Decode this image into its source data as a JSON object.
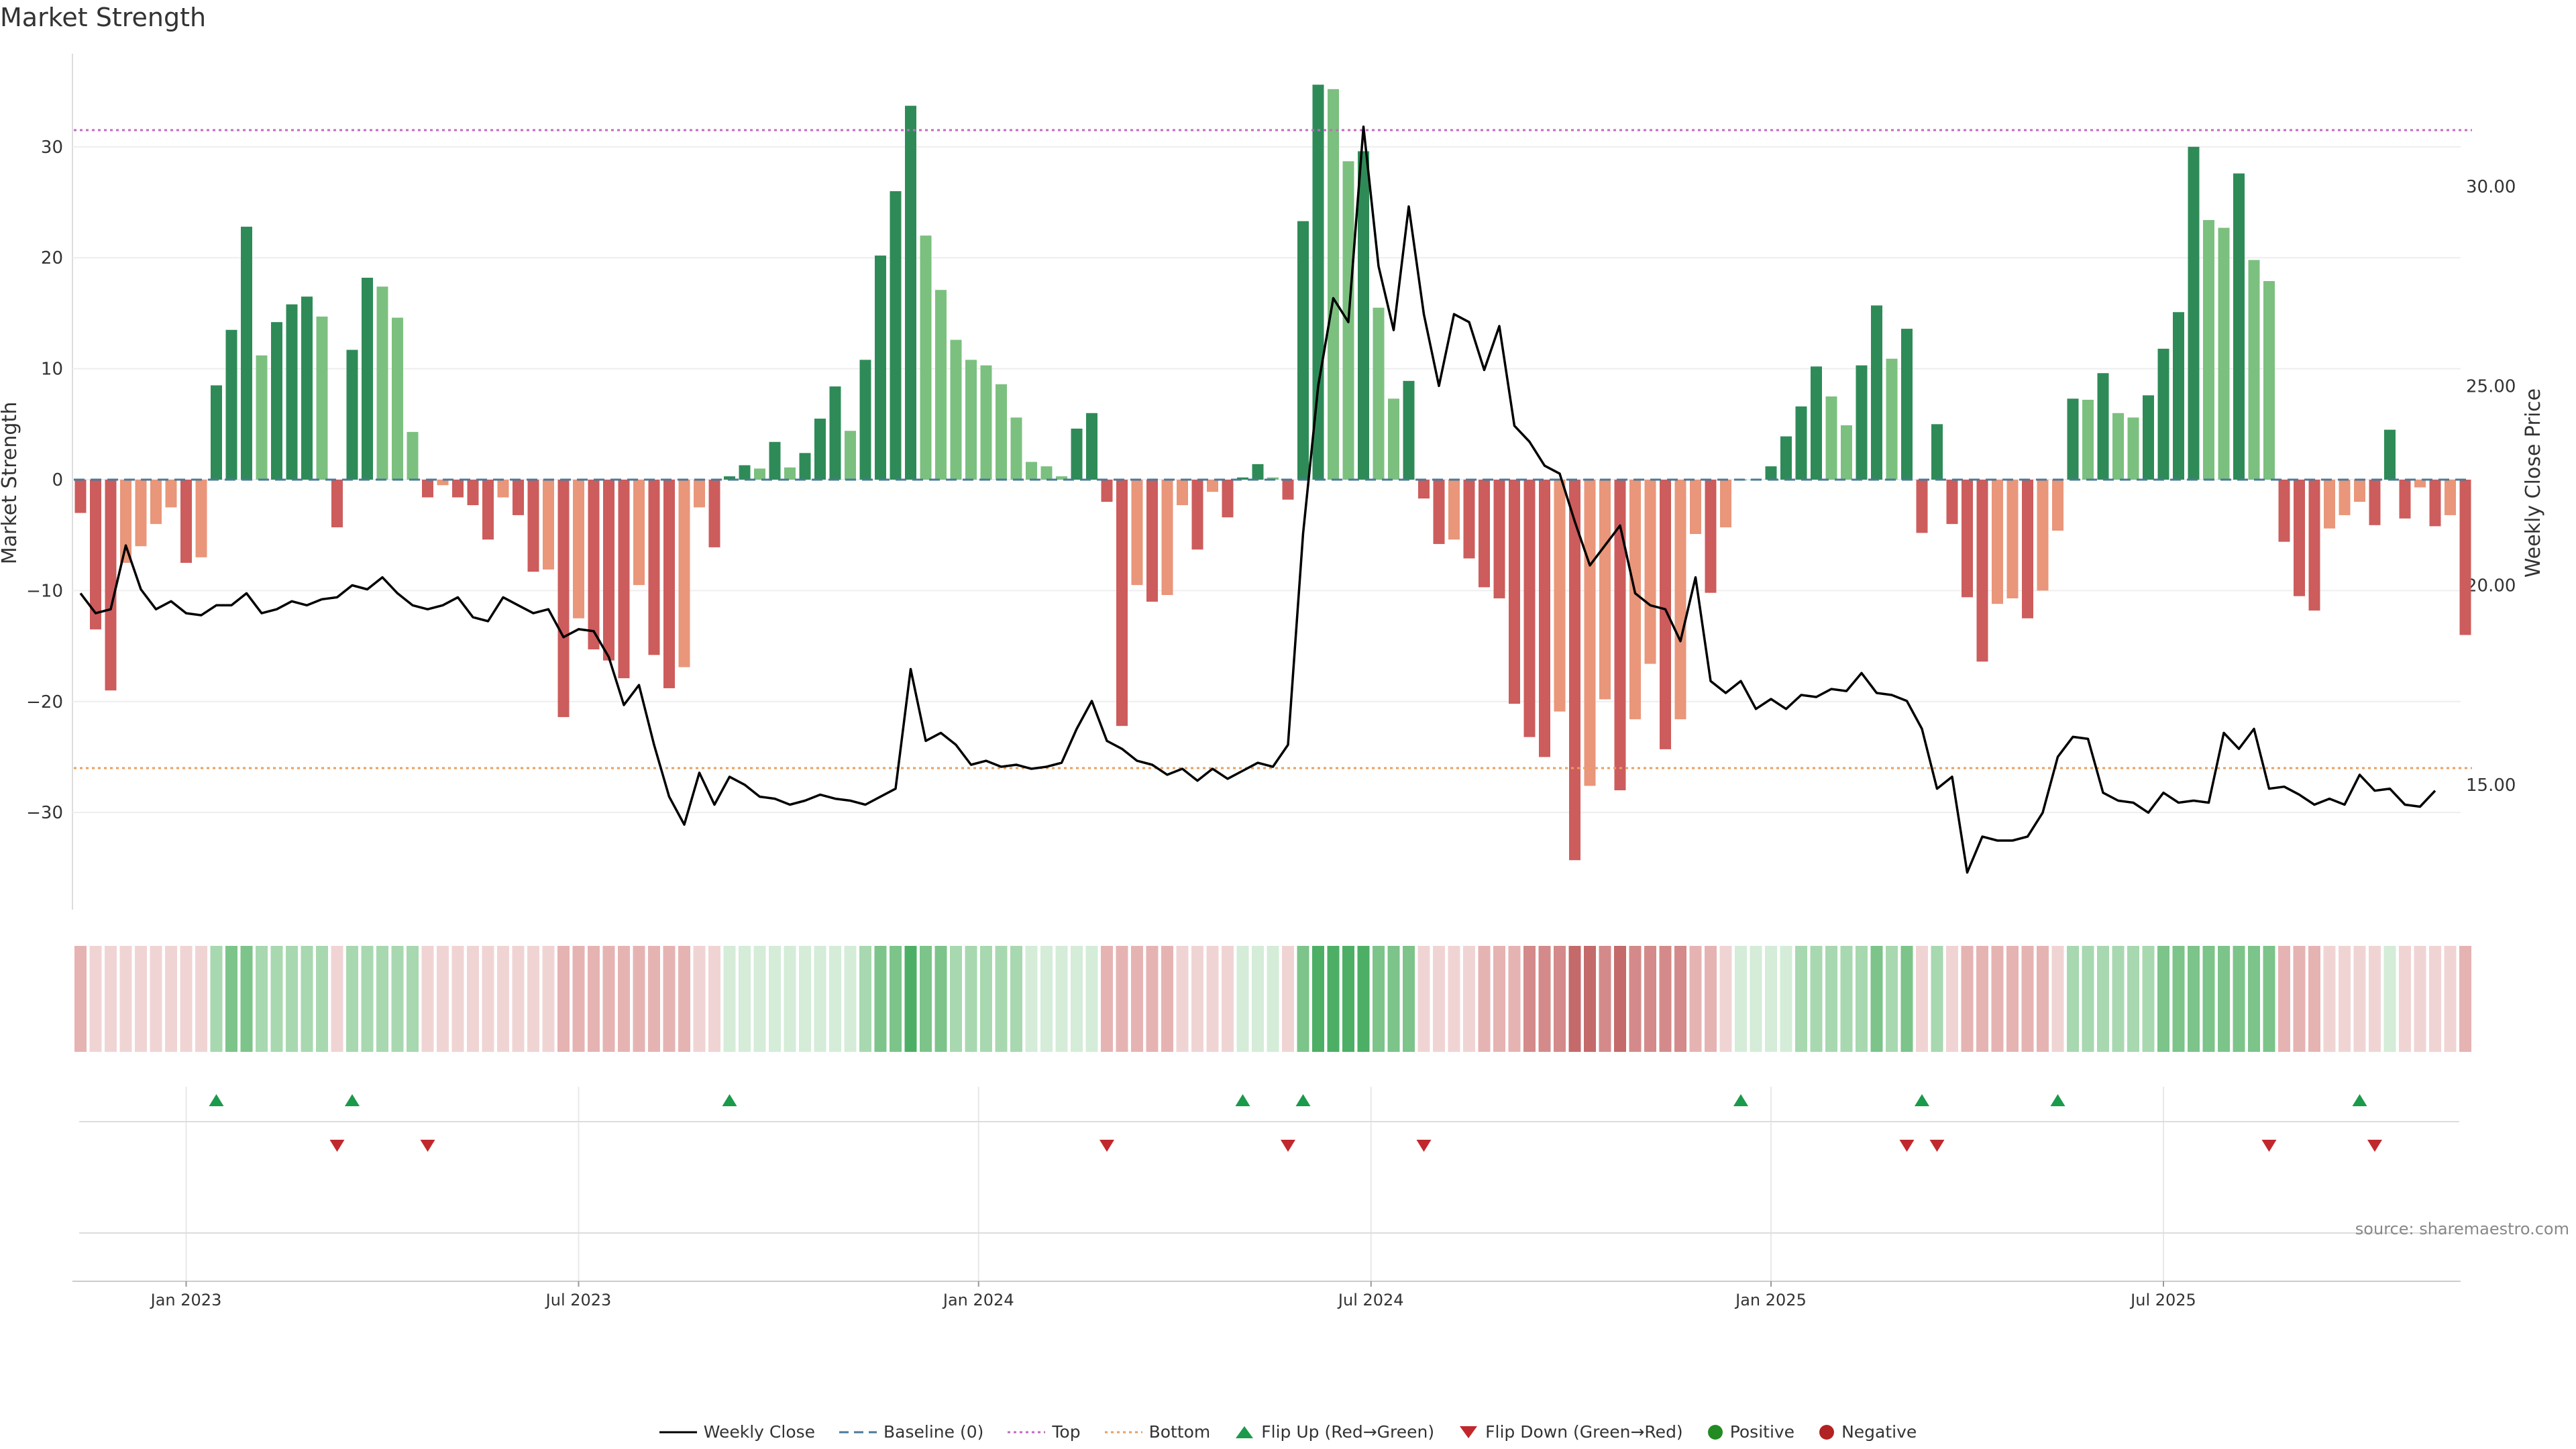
{
  "chart_data": {
    "type": "bar",
    "title": "Market Strength",
    "ylabel_left": "Market Strength",
    "ylabel_right": "Weekly Close Price",
    "ylim_left": [
      -39,
      39
    ],
    "ylim_right": [
      11.8,
      33.5
    ],
    "yticks_left": [
      -30,
      -20,
      -10,
      0,
      10,
      20,
      30
    ],
    "yticks_right": [
      "15.00",
      "20.00",
      "25.00",
      "30.00"
    ],
    "top_line": 31.5,
    "bottom_line": -26,
    "x_tick_labels": [
      "Jan 2023",
      "Jul 2023",
      "Jan 2024",
      "Jul 2024",
      "Jan 2025",
      "Jul 2025"
    ],
    "x_tick_weeks": [
      7,
      33,
      59.5,
      85.5,
      112,
      138
    ],
    "strength": [
      -3,
      -13.5,
      -19,
      -7.5,
      -6,
      -4,
      -2.5,
      -7.5,
      -7,
      8.5,
      13.5,
      22.8,
      11.2,
      14.2,
      15.8,
      16.5,
      14.7,
      -4.3,
      11.7,
      18.2,
      17.4,
      14.6,
      4.3,
      -1.6,
      -0.5,
      -1.6,
      -2.3,
      -5.4,
      -1.6,
      -3.2,
      -8.3,
      -8.1,
      -21.4,
      -12.5,
      -15.3,
      -16.3,
      -17.9,
      -9.5,
      -15.8,
      -18.8,
      -16.9,
      -2.5,
      -6.1,
      0.3,
      1.3,
      1,
      3.4,
      1.1,
      2.4,
      5.5,
      8.4,
      4.4,
      10.8,
      20.2,
      26,
      33.7,
      22,
      17.1,
      12.6,
      10.8,
      10.3,
      8.6,
      5.6,
      1.6,
      1.2,
      0.3,
      4.6,
      6,
      -2,
      -22.2,
      -9.5,
      -11,
      -10.4,
      -2.3,
      -6.3,
      -1.1,
      -3.4,
      0.2,
      1.4,
      0.2,
      -1.8,
      23.3,
      35.6,
      35.2,
      28.7,
      29.6,
      15.5,
      7.3,
      8.9,
      -1.7,
      -5.8,
      -5.4,
      -7.1,
      -9.7,
      -10.7,
      -20.2,
      -23.2,
      -25,
      -20.9,
      -34.3,
      -27.6,
      -19.8,
      -28,
      -21.6,
      -16.6,
      -24.3,
      -21.6,
      -4.9,
      -10.2,
      -4.3,
      0,
      0,
      1.2,
      3.9,
      6.6,
      10.2,
      7.5,
      4.9,
      10.3,
      15.7,
      10.9,
      13.6,
      -4.8,
      5,
      -4,
      -10.6,
      -16.4,
      -11.2,
      -10.7,
      -12.5,
      -10,
      -4.6,
      7.3,
      7.2,
      9.6,
      6,
      5.6,
      7.6,
      11.8,
      15.1,
      30,
      23.4,
      22.7,
      27.6,
      19.8,
      17.9,
      -5.6,
      -10.5,
      -11.8,
      -4.4,
      -3.2,
      -2,
      -4.1,
      4.5,
      -3.5,
      -0.7,
      -4.2,
      -3.2,
      -14
    ],
    "close": [
      19.8,
      19.3,
      19.4,
      21.0,
      19.9,
      19.4,
      19.6,
      19.3,
      19.25,
      19.5,
      19.5,
      19.8,
      19.3,
      19.4,
      19.6,
      19.5,
      19.65,
      19.7,
      20.0,
      19.9,
      20.2,
      19.8,
      19.5,
      19.4,
      19.5,
      19.7,
      19.2,
      19.1,
      19.7,
      19.5,
      19.3,
      19.4,
      18.7,
      18.9,
      18.85,
      18.2,
      17.0,
      17.5,
      16.0,
      14.7,
      14.0,
      15.3,
      14.5,
      15.2,
      15.0,
      14.7,
      14.65,
      14.5,
      14.6,
      14.75,
      14.65,
      14.6,
      14.5,
      14.7,
      14.9,
      17.9,
      16.1,
      16.3,
      16.0,
      15.5,
      15.6,
      15.45,
      15.5,
      15.4,
      15.45,
      15.55,
      16.4,
      17.1,
      16.1,
      15.9,
      15.6,
      15.5,
      15.25,
      15.4,
      15.1,
      15.4,
      15.15,
      15.35,
      15.55,
      15.45,
      16.0,
      21.3,
      25.0,
      27.2,
      26.6,
      31.5,
      28.0,
      26.4,
      29.5,
      26.8,
      25.0,
      26.8,
      26.6,
      25.4,
      26.5,
      24.0,
      23.6,
      23.0,
      22.8,
      21.6,
      20.5,
      21.0,
      21.5,
      19.8,
      19.5,
      19.4,
      18.6,
      20.2,
      17.6,
      17.3,
      17.6,
      16.9,
      17.15,
      16.9,
      17.25,
      17.2,
      17.4,
      17.35,
      17.8,
      17.3,
      17.25,
      17.1,
      16.4,
      14.9,
      15.2,
      12.8,
      13.7,
      13.6,
      13.6,
      13.7,
      14.3,
      15.7,
      16.2,
      16.15,
      14.8,
      14.6,
      14.55,
      14.3,
      14.8,
      14.55,
      14.6,
      14.55,
      16.3,
      15.9,
      16.4,
      14.9,
      14.95,
      14.75,
      14.5,
      14.65,
      14.5,
      15.25,
      14.85,
      14.9,
      14.5,
      14.45,
      14.85
    ],
    "state_intensity": [
      -2,
      -1,
      -1,
      -1,
      -1,
      -1,
      -1,
      -1,
      -1,
      2,
      3,
      3,
      2,
      2,
      2,
      2,
      2,
      -1,
      2,
      2,
      2,
      2,
      2,
      -1,
      -1,
      -1,
      -1,
      -1,
      -1,
      -1,
      -1,
      -1,
      -2,
      -2,
      -2,
      -2,
      -2,
      -2,
      -2,
      -2,
      -2,
      -1,
      -1,
      1,
      1,
      1,
      1,
      1,
      1,
      1,
      1,
      1,
      2,
      3,
      3,
      4,
      3,
      3,
      2,
      2,
      2,
      2,
      2,
      1,
      1,
      1,
      1,
      1,
      -2,
      -2,
      -2,
      -2,
      -2,
      -1,
      -1,
      -1,
      -1,
      1,
      1,
      1,
      -1,
      3,
      4,
      4,
      4,
      4,
      3,
      3,
      3,
      -1,
      -1,
      -1,
      -1,
      -2,
      -2,
      -2,
      -3,
      -3,
      -3,
      -4,
      -4,
      -3,
      -4,
      -3,
      -3,
      -3,
      -3,
      -2,
      -2,
      -1,
      1,
      1,
      1,
      1,
      2,
      2,
      2,
      2,
      2,
      3,
      2,
      3,
      -1,
      2,
      -1,
      -2,
      -2,
      -2,
      -2,
      -2,
      -2,
      -1,
      2,
      2,
      2,
      2,
      2,
      2,
      3,
      3,
      3,
      3,
      3,
      3,
      3,
      3,
      -2,
      -2,
      -2,
      -1,
      -1,
      -1,
      -1,
      1,
      -1,
      -1,
      -1,
      -1,
      -2
    ],
    "flip_up_weeks": [
      9,
      18,
      43,
      77,
      81,
      110,
      122,
      131,
      151
    ],
    "flip_down_weeks": [
      17,
      23,
      68,
      80,
      89,
      121,
      123,
      145,
      152
    ]
  },
  "colors": {
    "pos_strong": "#2e8b57",
    "pos_light": "#7cc07f",
    "neg_strong": "#cd5c5c",
    "neg_light": "#e9967a",
    "top_line": "#c26ac2",
    "bottom_line": "#e8a060",
    "baseline": "#4a7a9b",
    "close_line": "#000000",
    "flip_up": "#1a9a4a",
    "flip_down": "#c0282d",
    "positive_dot": "#228b22",
    "negative_dot": "#b22222"
  },
  "source": "source: sharemaestro.com",
  "legend": {
    "weekly_close": "Weekly Close",
    "baseline": "Baseline (0)",
    "top": "Top",
    "bottom": "Bottom",
    "flip_up": "Flip Up (Red→Green)",
    "flip_down": "Flip Down (Green→Red)",
    "positive": "Positive",
    "negative": "Negative"
  }
}
